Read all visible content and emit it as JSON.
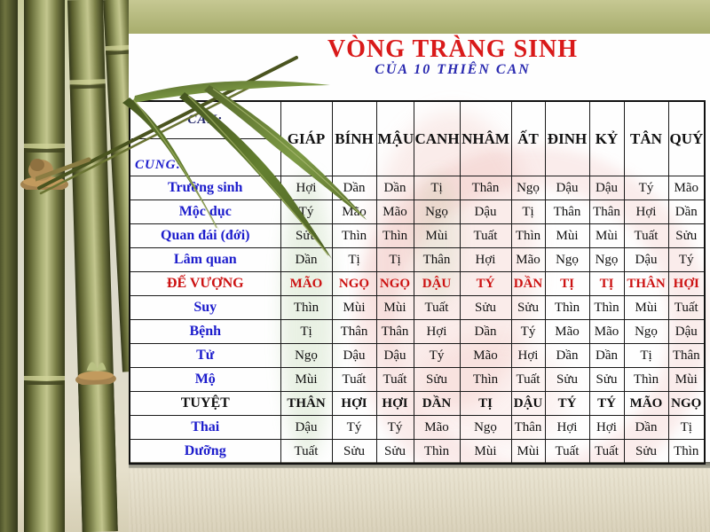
{
  "slide": {
    "title": "VÒNG TRÀNG SINH",
    "subtitle": "CỦA 10 THIÊN CAN"
  },
  "table": {
    "corner": {
      "top": "CAN:",
      "bottom": "CUNG:"
    },
    "columns": [
      "GIÁP",
      "BÍNH",
      "MẬU",
      "CANH",
      "NHÂM",
      "ẤT",
      "ĐINH",
      "KỶ",
      "TÂN",
      "QUÝ"
    ],
    "rows": [
      {
        "label": "Trường sinh",
        "variant": "plain",
        "cells": [
          "Hợi",
          "Dần",
          "Dần",
          "Tị",
          "Thân",
          "Ngọ",
          "Dậu",
          "Dậu",
          "Tý",
          "Mão"
        ]
      },
      {
        "label": "Mộc dục",
        "variant": "plain",
        "cells": [
          "Tý",
          "Mão",
          "Mão",
          "Ngọ",
          "Dậu",
          "Tị",
          "Thân",
          "Thân",
          "Hợi",
          "Dần"
        ]
      },
      {
        "label": "Quan đái (đới)",
        "variant": "plain",
        "cells": [
          "Sửu",
          "Thìn",
          "Thìn",
          "Mùi",
          "Tuất",
          "Thìn",
          "Mùi",
          "Mùi",
          "Tuất",
          "Sửu"
        ]
      },
      {
        "label": "Lâm quan",
        "variant": "plain",
        "cells": [
          "Dần",
          "Tị",
          "Tị",
          "Thân",
          "Hợi",
          "Mão",
          "Ngọ",
          "Ngọ",
          "Dậu",
          "Tý"
        ]
      },
      {
        "label": "ĐẾ VƯỢNG",
        "variant": "red",
        "cells": [
          "MÃO",
          "NGỌ",
          "NGỌ",
          "DẬU",
          "TÝ",
          "DẦN",
          "TỊ",
          "TỊ",
          "THÂN",
          "HỢI"
        ]
      },
      {
        "label": "Suy",
        "variant": "plain",
        "cells": [
          "Thìn",
          "Mùi",
          "Mùi",
          "Tuất",
          "Sửu",
          "Sửu",
          "Thìn",
          "Thìn",
          "Mùi",
          "Tuất"
        ]
      },
      {
        "label": "Bệnh",
        "variant": "plain",
        "cells": [
          "Tị",
          "Thân",
          "Thân",
          "Hợi",
          "Dần",
          "Tý",
          "Mão",
          "Mão",
          "Ngọ",
          "Dậu"
        ]
      },
      {
        "label": "Tử",
        "variant": "plain",
        "cells": [
          "Ngọ",
          "Dậu",
          "Dậu",
          "Tý",
          "Mão",
          "Hợi",
          "Dần",
          "Dần",
          "Tị",
          "Thân"
        ]
      },
      {
        "label": "Mộ",
        "variant": "plain",
        "cells": [
          "Mùi",
          "Tuất",
          "Tuất",
          "Sửu",
          "Thìn",
          "Tuất",
          "Sửu",
          "Sửu",
          "Thìn",
          "Mùi"
        ]
      },
      {
        "label": "TUYỆT",
        "variant": "bold",
        "cells": [
          "THÂN",
          "HỢI",
          "HỢI",
          "DẦN",
          "TỊ",
          "DẬU",
          "TÝ",
          "TÝ",
          "MÃO",
          "NGỌ"
        ]
      },
      {
        "label": "Thai",
        "variant": "plain",
        "cells": [
          "Dậu",
          "Tý",
          "Tý",
          "Mão",
          "Ngọ",
          "Thân",
          "Hợi",
          "Hợi",
          "Dần",
          "Tị"
        ]
      },
      {
        "label": "Dưỡng",
        "variant": "plain",
        "cells": [
          "Tuất",
          "Sửu",
          "Sửu",
          "Thìn",
          "Mùi",
          "Mùi",
          "Tuất",
          "Tuất",
          "Sửu",
          "Thìn"
        ]
      }
    ]
  },
  "colors": {
    "title_red": "#d91a1a",
    "subtitle_blue": "#2a2ab0",
    "label_blue": "#1c1ccc",
    "highlight_red": "#cc1212",
    "border_black": "#1a1a1a"
  }
}
